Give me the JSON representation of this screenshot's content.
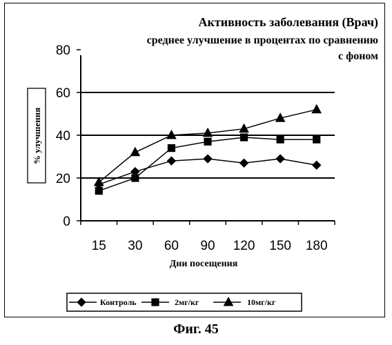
{
  "chart_data": {
    "type": "line",
    "title": "Активность заболевания (Врач)",
    "subtitle_line1": "среднее улучшение в процентах по сравнению",
    "subtitle_line2": "с фоном",
    "xlabel": "Дни посещения",
    "ylabel": "% улучшения",
    "categories": [
      "15",
      "30",
      "60",
      "90",
      "120",
      "150",
      "180"
    ],
    "yticks": [
      "0",
      "20",
      "40",
      "60",
      "80"
    ],
    "ylim": [
      0,
      80
    ],
    "grid": "horizontal lines at 20, 40, 60",
    "legend_position": "bottom",
    "series": [
      {
        "name": "Контроль",
        "marker": "diamond",
        "values": [
          17,
          23,
          28,
          29,
          27,
          29,
          26
        ]
      },
      {
        "name": "2мг/кг",
        "marker": "square",
        "values": [
          14,
          20,
          34,
          37,
          39,
          38,
          38
        ]
      },
      {
        "name": "10мг/кг",
        "marker": "triangle",
        "values": [
          18,
          32,
          40,
          41,
          43,
          48,
          52
        ]
      }
    ]
  },
  "caption": "Фиг. 45"
}
